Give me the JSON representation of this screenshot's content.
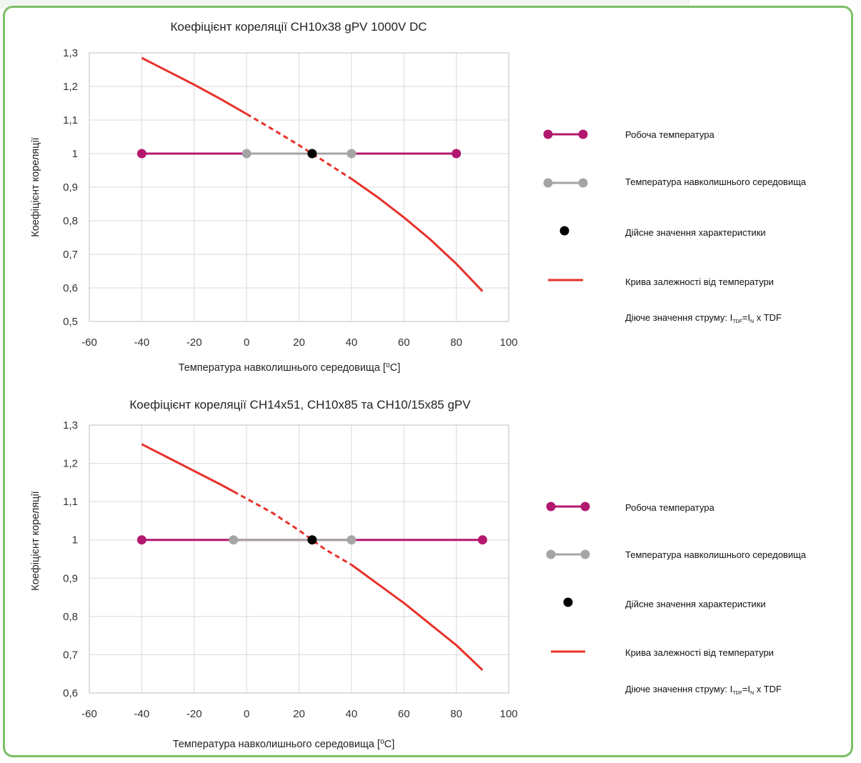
{
  "colors": {
    "working": "#b3186f",
    "ambient": "#a5a5a5",
    "actual": "#000000",
    "curve": "#e8312a",
    "grid": "#d9d9d9",
    "frame": "#7cbf67"
  },
  "legend": {
    "working": "Робоча температура",
    "ambient": "Температура навколишнього середовища",
    "actual": "Дійсне значення характеристики",
    "curve": "Крива залежності від температури",
    "formula": {
      "prefix": "Діюче значення струму: I",
      "sub1": "TDF",
      "mid": "=I",
      "sub2": "N",
      "suffix": " x TDF"
    }
  },
  "chart_data": [
    {
      "type": "line",
      "title": "Коефіцієнт кореляції CH10x38 gPV 1000V DC",
      "xlabel": "Температура навколишнього середовища [⁰C]",
      "ylabel": "Коефіцієнт кореляції",
      "xlim": [
        -60,
        100
      ],
      "ylim": [
        0.5,
        1.3
      ],
      "x_ticks": [
        -60,
        -40,
        -20,
        0,
        20,
        40,
        60,
        80,
        100
      ],
      "y_ticks": [
        0.5,
        0.6,
        0.7,
        0.8,
        0.9,
        1.0,
        1.1,
        1.2,
        1.3
      ],
      "x_tick_labels": [
        "-60",
        "-40",
        "-20",
        "0",
        "20",
        "40",
        "60",
        "80",
        "100"
      ],
      "y_tick_labels": [
        "0,5",
        "0,6",
        "0,7",
        "0,8",
        "0,9",
        "1",
        "1,1",
        "1,2",
        "1,3"
      ],
      "grid": true,
      "legend_position": "right",
      "series": [
        {
          "key": "working",
          "name": "Робоча температура",
          "x": [
            -40,
            80
          ],
          "y": [
            1,
            1
          ]
        },
        {
          "key": "ambient",
          "name": "Температура навколишнього середовища",
          "x": [
            0,
            40
          ],
          "y": [
            1,
            1
          ]
        },
        {
          "key": "actual",
          "name": "Дійсне значення характеристики",
          "x": [
            25
          ],
          "y": [
            1
          ]
        },
        {
          "key": "curve",
          "name": "Крива залежності від температури",
          "x": [
            -40,
            -30,
            -20,
            -10,
            0,
            10,
            20,
            25,
            30,
            40,
            50,
            60,
            70,
            80,
            90
          ],
          "y": [
            1.285,
            1.245,
            1.205,
            1.163,
            1.118,
            1.072,
            1.025,
            1.0,
            0.975,
            0.925,
            0.87,
            0.81,
            0.745,
            0.672,
            0.59
          ],
          "dashed_range": [
            0,
            40
          ]
        }
      ]
    },
    {
      "type": "line",
      "title": "Коефіцієнт кореляції CH14x51, CH10x85 та CH10/15x85 gPV",
      "xlabel": "Температура навколишнього середовища [⁰C]",
      "ylabel": "Коефіцієнт кореляції",
      "xlim": [
        -60,
        100
      ],
      "ylim": [
        0.6,
        1.3
      ],
      "x_ticks": [
        -60,
        -40,
        -20,
        0,
        20,
        40,
        60,
        80,
        100
      ],
      "y_ticks": [
        0.6,
        0.7,
        0.8,
        0.9,
        1.0,
        1.1,
        1.2,
        1.3
      ],
      "x_tick_labels": [
        "-60",
        "-40",
        "-20",
        "0",
        "20",
        "40",
        "60",
        "80",
        "100"
      ],
      "y_tick_labels": [
        "0,6",
        "0,7",
        "0,8",
        "0,9",
        "1",
        "1,1",
        "1,2",
        "1,3"
      ],
      "grid": true,
      "legend_position": "right",
      "series": [
        {
          "key": "working",
          "name": "Робоча температура",
          "x": [
            -40,
            90
          ],
          "y": [
            1,
            1
          ]
        },
        {
          "key": "ambient",
          "name": "Температура навколишнього середовища",
          "x": [
            -5,
            40
          ],
          "y": [
            1,
            1
          ]
        },
        {
          "key": "actual",
          "name": "Дійсне значення характеристики",
          "x": [
            25
          ],
          "y": [
            1
          ]
        },
        {
          "key": "curve",
          "name": "Крива залежності від температури",
          "x": [
            -40,
            -30,
            -20,
            -10,
            0,
            10,
            20,
            25,
            30,
            40,
            50,
            60,
            70,
            80,
            90
          ],
          "y": [
            1.25,
            1.215,
            1.18,
            1.145,
            1.108,
            1.07,
            1.025,
            1.0,
            0.975,
            0.935,
            0.885,
            0.835,
            0.78,
            0.725,
            0.66
          ],
          "dashed_range": [
            -5,
            40
          ]
        }
      ]
    }
  ]
}
